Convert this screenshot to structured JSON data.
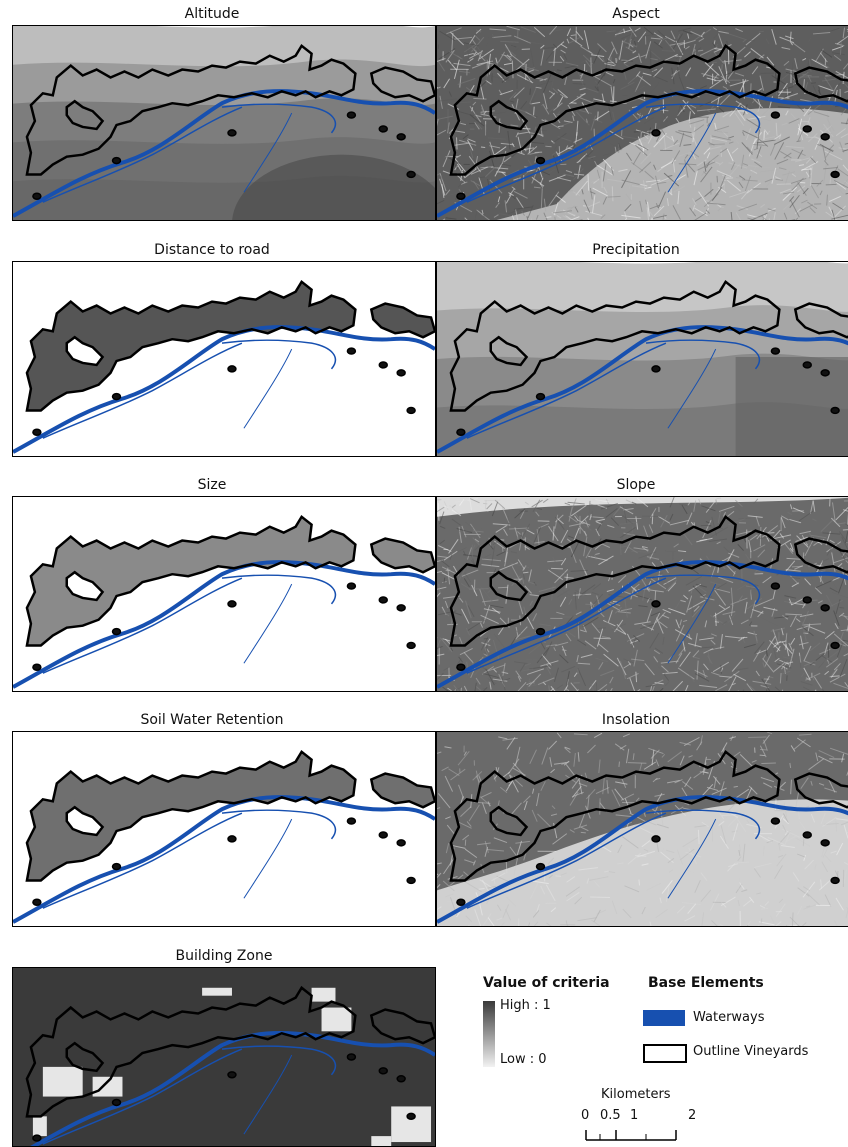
{
  "panels": [
    {
      "title": "Altitude",
      "style": "altitude"
    },
    {
      "title": "Aspect",
      "style": "aspect"
    },
    {
      "title": "Distance to road",
      "style": "road"
    },
    {
      "title": "Precipitation",
      "style": "precip"
    },
    {
      "title": "Size",
      "style": "size"
    },
    {
      "title": "Slope",
      "style": "slope"
    },
    {
      "title": "Soil Water Retention",
      "style": "soil"
    },
    {
      "title": "Insolation",
      "style": "insol"
    },
    {
      "title": "Building Zone",
      "style": "building"
    }
  ],
  "legend": {
    "criteria_title": "Value of criteria",
    "high_label": "High : 1",
    "low_label": "Low : 0",
    "base_title": "Base Elements",
    "waterways_label": "Waterways",
    "outline_label": "Outline Vineyards"
  },
  "scale": {
    "title": "Kilometers",
    "ticks": [
      "0",
      "0.5",
      "1",
      "2"
    ]
  },
  "colors": {
    "waterway": "#1750b0",
    "outline": "#000000"
  }
}
